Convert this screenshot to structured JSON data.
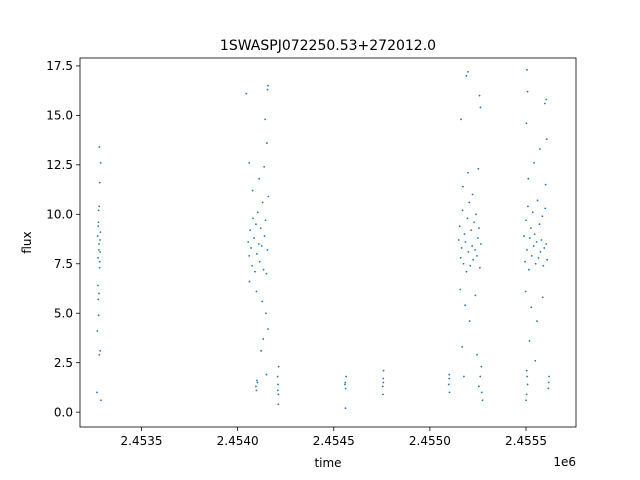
{
  "chart_data": {
    "type": "scatter",
    "title": "1SWASPJ072250.53+272012.0",
    "xlabel": "time",
    "ylabel": "flux",
    "x_offset_label": "1e6",
    "x_scale_factor": 1000000,
    "xlim": [
      2453180,
      2455760
    ],
    "ylim": [
      -0.75,
      17.9
    ],
    "grid": false,
    "legend": "none",
    "marker_color": "#1f77b4",
    "x_ticks": [
      {
        "value": 2453500,
        "label": "2.4535"
      },
      {
        "value": 2454000,
        "label": "2.4540"
      },
      {
        "value": 2454500,
        "label": "2.4545"
      },
      {
        "value": 2455000,
        "label": "2.4550"
      },
      {
        "value": 2455500,
        "label": "2.4555"
      }
    ],
    "y_ticks": [
      {
        "value": 0.0,
        "label": "0.0"
      },
      {
        "value": 2.5,
        "label": "2.5"
      },
      {
        "value": 5.0,
        "label": "5.0"
      },
      {
        "value": 7.5,
        "label": "7.5"
      },
      {
        "value": 10.0,
        "label": "10.0"
      },
      {
        "value": 12.5,
        "label": "12.5"
      },
      {
        "value": 15.0,
        "label": "15.0"
      },
      {
        "value": 17.5,
        "label": "17.5"
      }
    ],
    "series": [
      {
        "points": [
          [
            2453272,
            8.9
          ],
          [
            2453274,
            7.8
          ],
          [
            2453276,
            9.6
          ],
          [
            2453278,
            8.2
          ],
          [
            2453280,
            10.4
          ],
          [
            2453282,
            7.3
          ],
          [
            2453284,
            8.7
          ],
          [
            2453286,
            9.1
          ],
          [
            2453273,
            6.4
          ],
          [
            2453279,
            6.0
          ],
          [
            2453283,
            11.6
          ],
          [
            2453287,
            12.6
          ],
          [
            2453281,
            13.4
          ],
          [
            2453275,
            5.7
          ],
          [
            2453277,
            4.9
          ],
          [
            2453270,
            4.1
          ],
          [
            2453285,
            3.1
          ],
          [
            2453281,
            2.9
          ],
          [
            2453268,
            1.0
          ],
          [
            2453289,
            0.6
          ],
          [
            2453275,
            9.4
          ],
          [
            2453279,
            8.5
          ],
          [
            2453283,
            7.6
          ],
          [
            2453277,
            10.2
          ],
          [
            2453285,
            8.1
          ],
          [
            2454055,
            8.6
          ],
          [
            2454060,
            7.9
          ],
          [
            2454065,
            9.2
          ],
          [
            2454070,
            8.3
          ],
          [
            2454075,
            7.4
          ],
          [
            2454080,
            9.8
          ],
          [
            2454085,
            8.8
          ],
          [
            2454090,
            7.1
          ],
          [
            2454095,
            9.5
          ],
          [
            2454100,
            8.0
          ],
          [
            2454105,
            10.1
          ],
          [
            2454110,
            8.5
          ],
          [
            2454115,
            7.6
          ],
          [
            2454120,
            9.3
          ],
          [
            2454125,
            8.4
          ],
          [
            2454130,
            10.6
          ],
          [
            2454135,
            7.2
          ],
          [
            2454140,
            8.9
          ],
          [
            2454145,
            9.7
          ],
          [
            2454150,
            7.0
          ],
          [
            2454155,
            8.2
          ],
          [
            2454160,
            10.9
          ],
          [
            2454062,
            6.6
          ],
          [
            2454078,
            11.2
          ],
          [
            2454098,
            6.1
          ],
          [
            2454112,
            11.8
          ],
          [
            2454128,
            5.6
          ],
          [
            2454138,
            12.4
          ],
          [
            2454147,
            5.0
          ],
          [
            2454152,
            13.6
          ],
          [
            2454158,
            4.2
          ],
          [
            2454143,
            14.8
          ],
          [
            2454133,
            3.7
          ],
          [
            2454122,
            3.1
          ],
          [
            2454060,
            12.6
          ],
          [
            2454045,
            16.1
          ],
          [
            2454155,
            16.3
          ],
          [
            2454158,
            16.5
          ],
          [
            2454150,
            1.9
          ],
          [
            2454095,
            1.3
          ],
          [
            2454103,
            1.5
          ],
          [
            2454098,
            1.1
          ],
          [
            2454100,
            1.6
          ],
          [
            2454210,
            1.4
          ],
          [
            2454212,
            0.9
          ],
          [
            2454208,
            1.8
          ],
          [
            2454211,
            0.4
          ],
          [
            2454213,
            2.3
          ],
          [
            2454209,
            1.1
          ],
          [
            2454560,
            1.5
          ],
          [
            2454562,
            1.2
          ],
          [
            2454564,
            1.8
          ],
          [
            2454558,
            1.4
          ],
          [
            2454561,
            0.2
          ],
          [
            2454755,
            1.3
          ],
          [
            2454757,
            1.7
          ],
          [
            2454759,
            2.1
          ],
          [
            2454756,
            0.9
          ],
          [
            2454758,
            1.5
          ],
          [
            2455098,
            1.4
          ],
          [
            2455100,
            1.7
          ],
          [
            2455102,
            1.0
          ],
          [
            2455101,
            1.9
          ],
          [
            2455150,
            8.7
          ],
          [
            2455155,
            9.4
          ],
          [
            2455160,
            7.8
          ],
          [
            2455165,
            8.3
          ],
          [
            2455170,
            10.2
          ],
          [
            2455175,
            7.5
          ],
          [
            2455180,
            9.0
          ],
          [
            2455185,
            8.6
          ],
          [
            2455190,
            7.1
          ],
          [
            2455195,
            9.8
          ],
          [
            2455200,
            8.1
          ],
          [
            2455205,
            10.6
          ],
          [
            2455210,
            7.4
          ],
          [
            2455215,
            9.2
          ],
          [
            2455220,
            8.4
          ],
          [
            2455225,
            7.7
          ],
          [
            2455230,
            9.6
          ],
          [
            2455235,
            8.2
          ],
          [
            2455240,
            10.0
          ],
          [
            2455245,
            7.9
          ],
          [
            2455250,
            8.8
          ],
          [
            2455255,
            9.3
          ],
          [
            2455260,
            7.3
          ],
          [
            2455265,
            8.5
          ],
          [
            2455158,
            6.2
          ],
          [
            2455172,
            11.4
          ],
          [
            2455183,
            5.4
          ],
          [
            2455198,
            12.1
          ],
          [
            2455207,
            4.6
          ],
          [
            2455222,
            11.0
          ],
          [
            2455237,
            5.9
          ],
          [
            2455252,
            12.3
          ],
          [
            2455162,
            14.8
          ],
          [
            2455168,
            3.3
          ],
          [
            2455177,
            1.8
          ],
          [
            2455190,
            17.0
          ],
          [
            2455198,
            17.2
          ],
          [
            2455258,
            16.0
          ],
          [
            2455263,
            15.4
          ],
          [
            2455245,
            2.9
          ],
          [
            2455255,
            1.3
          ],
          [
            2455262,
            1.8
          ],
          [
            2455268,
            2.3
          ],
          [
            2455270,
            1.0
          ],
          [
            2455274,
            0.6
          ],
          [
            2455490,
            8.9
          ],
          [
            2455495,
            7.6
          ],
          [
            2455500,
            9.7
          ],
          [
            2455505,
            8.2
          ],
          [
            2455510,
            10.4
          ],
          [
            2455515,
            7.2
          ],
          [
            2455520,
            8.8
          ],
          [
            2455525,
            9.3
          ],
          [
            2455530,
            7.9
          ],
          [
            2455535,
            10.1
          ],
          [
            2455540,
            8.4
          ],
          [
            2455545,
            9.0
          ],
          [
            2455550,
            7.5
          ],
          [
            2455555,
            8.6
          ],
          [
            2455560,
            10.7
          ],
          [
            2455565,
            7.8
          ],
          [
            2455570,
            9.5
          ],
          [
            2455575,
            8.1
          ],
          [
            2455580,
            8.7
          ],
          [
            2455585,
            9.9
          ],
          [
            2455590,
            7.4
          ],
          [
            2455595,
            8.3
          ],
          [
            2455600,
            10.3
          ],
          [
            2455605,
            8.5
          ],
          [
            2455610,
            7.7
          ],
          [
            2455498,
            6.1
          ],
          [
            2455512,
            11.8
          ],
          [
            2455527,
            5.3
          ],
          [
            2455542,
            12.6
          ],
          [
            2455557,
            4.6
          ],
          [
            2455572,
            13.3
          ],
          [
            2455587,
            5.8
          ],
          [
            2455602,
            11.5
          ],
          [
            2455502,
            14.6
          ],
          [
            2455518,
            3.6
          ],
          [
            2455505,
            17.3
          ],
          [
            2455508,
            16.2
          ],
          [
            2455598,
            15.6
          ],
          [
            2455605,
            15.8
          ],
          [
            2455608,
            13.8
          ],
          [
            2455508,
            1.4
          ],
          [
            2455503,
            0.9
          ],
          [
            2455506,
            1.8
          ],
          [
            2455500,
            0.6
          ],
          [
            2455504,
            2.1
          ],
          [
            2455618,
            1.5
          ],
          [
            2455620,
            1.8
          ],
          [
            2455616,
            1.2
          ],
          [
            2455548,
            2.6
          ]
        ]
      }
    ]
  }
}
